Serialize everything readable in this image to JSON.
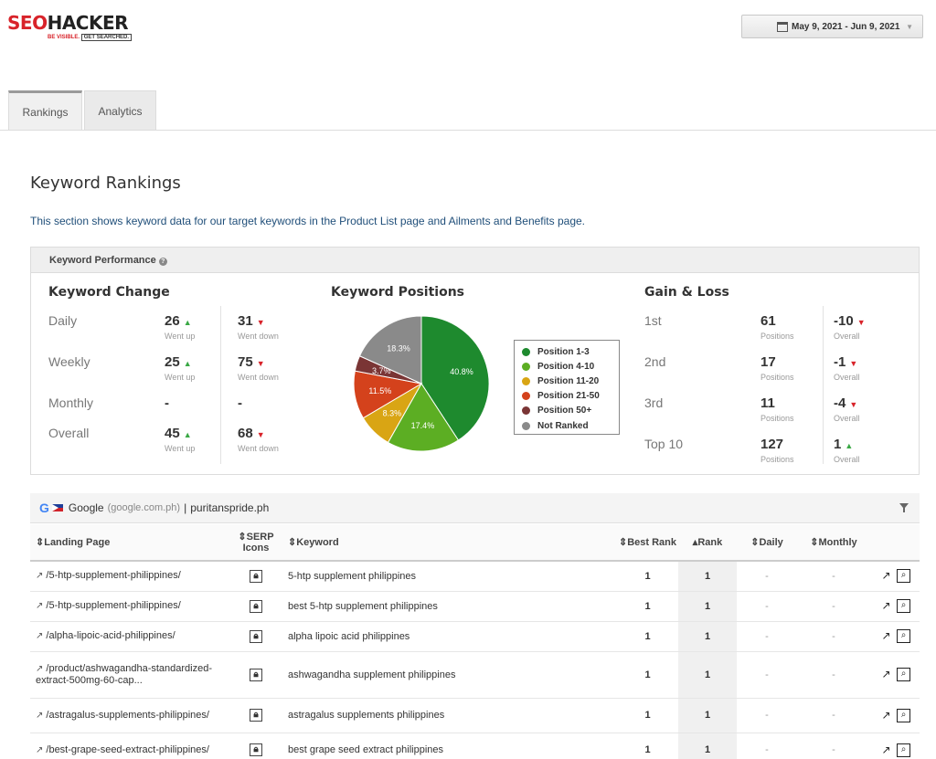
{
  "logo": {
    "seo": "SEO",
    "hacker": "HACKER",
    "tagline_red": "BE VISIBLE.",
    "tagline_box": "GET SEARCHED."
  },
  "date_range": "May 9, 2021 - Jun 9, 2021",
  "tabs": [
    {
      "label": "Rankings",
      "active": true
    },
    {
      "label": "Analytics",
      "active": false
    }
  ],
  "section": {
    "title": "Keyword Rankings",
    "description": "This section shows keyword data for our target keywords in the Product List page and Ailments and Benefits page."
  },
  "performance": {
    "header": "Keyword Performance",
    "keyword_change": {
      "title": "Keyword Change",
      "rows": [
        {
          "label": "Daily",
          "up": "26",
          "up_sub": "Went up",
          "down": "31",
          "down_sub": "Went down"
        },
        {
          "label": "Weekly",
          "up": "25",
          "up_sub": "Went up",
          "down": "75",
          "down_sub": "Went down"
        },
        {
          "label": "Monthly",
          "up": "-",
          "up_sub": "",
          "down": "-",
          "down_sub": ""
        },
        {
          "label": "Overall",
          "up": "45",
          "up_sub": "Went up",
          "down": "68",
          "down_sub": "Went down"
        }
      ]
    },
    "keyword_positions": {
      "title": "Keyword Positions"
    },
    "gain_loss": {
      "title": "Gain & Loss",
      "rows": [
        {
          "label": "1st",
          "value": "61",
          "value_sub": "Positions",
          "delta": "-10",
          "delta_sub": "Overall",
          "dir": "down"
        },
        {
          "label": "2nd",
          "value": "17",
          "value_sub": "Positions",
          "delta": "-1",
          "delta_sub": "Overall",
          "dir": "down"
        },
        {
          "label": "3rd",
          "value": "11",
          "value_sub": "Positions",
          "delta": "-4",
          "delta_sub": "Overall",
          "dir": "down"
        },
        {
          "label": "Top 10",
          "value": "127",
          "value_sub": "Positions",
          "delta": "1",
          "delta_sub": "Overall",
          "dir": "up"
        }
      ]
    }
  },
  "chart_data": {
    "type": "pie",
    "title": "Keyword Positions",
    "slices": [
      {
        "label": "Position 1-3",
        "value": 40.8,
        "display": "40.8%",
        "color": "#1e8a2e"
      },
      {
        "label": "Position 4-10",
        "value": 17.4,
        "display": "17.4%",
        "color": "#5cae23"
      },
      {
        "label": "Position 11-20",
        "value": 8.3,
        "display": "8.3%",
        "color": "#d9a514"
      },
      {
        "label": "Position 21-50",
        "value": 11.5,
        "display": "11.5%",
        "color": "#d4421c"
      },
      {
        "label": "Position 50+",
        "value": 3.7,
        "display": "3.7%",
        "color": "#7a3535"
      },
      {
        "label": "Not Ranked",
        "value": 18.3,
        "display": "18.3%",
        "color": "#8a8a8a"
      }
    ],
    "legend_placement": "right"
  },
  "table_bar": {
    "engine": "Google",
    "engine_domain": "(google.com.ph)",
    "separator": "|",
    "site": "puritanspride.ph"
  },
  "table": {
    "columns": {
      "landing": "Landing Page",
      "serp": "SERP Icons",
      "keyword": "Keyword",
      "best": "Best Rank",
      "rank": "Rank",
      "daily": "Daily",
      "monthly": "Monthly"
    },
    "rows": [
      {
        "landing": "/5-htp-supplement-philippines/",
        "keyword": "5-htp supplement philippines",
        "best": "1",
        "rank": "1",
        "daily": "-",
        "monthly": "-"
      },
      {
        "landing": "/5-htp-supplement-philippines/",
        "keyword": "best 5-htp supplement philippines",
        "best": "1",
        "rank": "1",
        "daily": "-",
        "monthly": "-"
      },
      {
        "landing": "/alpha-lipoic-acid-philippines/",
        "keyword": "alpha lipoic acid philippines",
        "best": "1",
        "rank": "1",
        "daily": "-",
        "monthly": "-"
      },
      {
        "landing": "/product/ashwagandha-standardized-extract-500mg-60-cap...",
        "keyword": "ashwagandha supplement philippines",
        "best": "1",
        "rank": "1",
        "daily": "-",
        "monthly": "-"
      },
      {
        "landing": "/astragalus-supplements-philippines/",
        "keyword": "astragalus supplements philippines",
        "best": "1",
        "rank": "1",
        "daily": "-",
        "monthly": "-"
      },
      {
        "landing": "/best-grape-seed-extract-philippines/",
        "keyword": "best grape seed extract philippines",
        "best": "1",
        "rank": "1",
        "daily": "-",
        "monthly": "-"
      }
    ]
  }
}
